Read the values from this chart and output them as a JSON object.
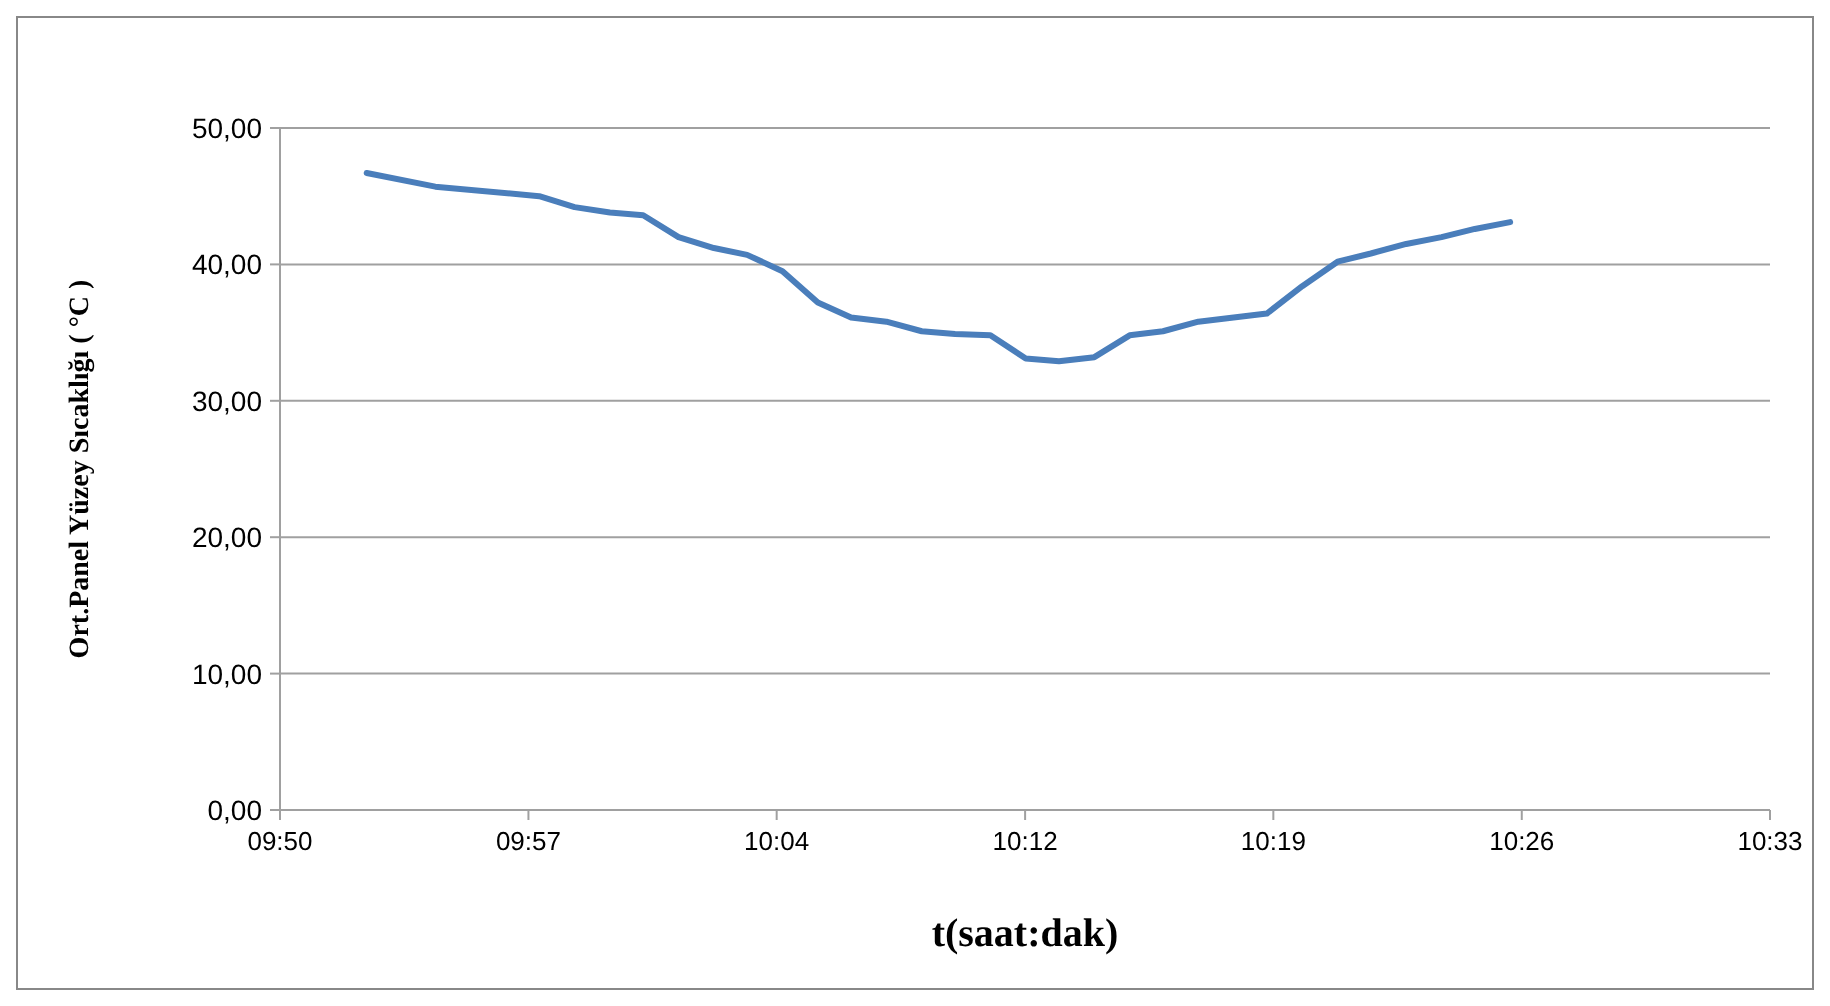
{
  "chart_data": {
    "type": "line",
    "xlabel": "t(saat:dak)",
    "ylabel": "Ort.Panel Yüzey Sıcaklığı ( °C )",
    "x": [
      9.875,
      9.908,
      9.958,
      9.975,
      9.992,
      10.008,
      10.025,
      10.042,
      10.058,
      10.075,
      10.092,
      10.108,
      10.125,
      10.142,
      10.158,
      10.175,
      10.192,
      10.208,
      10.225,
      10.242,
      10.258,
      10.275,
      10.292,
      10.308,
      10.325,
      10.342,
      10.358,
      10.375,
      10.392,
      10.408,
      10.425
    ],
    "series": [
      {
        "color": "#4a7ebb",
        "values": [
          46.7,
          45.7,
          45.0,
          44.2,
          43.8,
          43.6,
          42.0,
          41.2,
          40.7,
          39.5,
          37.2,
          36.1,
          35.8,
          35.1,
          34.9,
          34.8,
          33.1,
          32.9,
          33.2,
          34.8,
          35.1,
          35.8,
          36.1,
          36.4,
          38.4,
          40.2,
          40.8,
          41.5,
          42.0,
          42.6,
          43.1
        ]
      }
    ],
    "xlim": [
      9.8333,
      10.55
    ],
    "xticks": [
      {
        "value": 9.8333,
        "label": "09:50"
      },
      {
        "value": 9.9528,
        "label": "09:57"
      },
      {
        "value": 10.0722,
        "label": "10:04"
      },
      {
        "value": 10.1917,
        "label": "10:12"
      },
      {
        "value": 10.3111,
        "label": "10:19"
      },
      {
        "value": 10.4306,
        "label": "10:26"
      },
      {
        "value": 10.55,
        "label": "10:33"
      }
    ],
    "ylim": [
      0,
      50
    ],
    "yticks": [
      {
        "value": 0,
        "label": "0,00"
      },
      {
        "value": 10,
        "label": "10,00"
      },
      {
        "value": 20,
        "label": "20,00"
      },
      {
        "value": 30,
        "label": "30,00"
      },
      {
        "value": 40,
        "label": "40,00"
      },
      {
        "value": 50,
        "label": "50,00"
      }
    ],
    "grid": "y",
    "marker": "none",
    "line_style": "solid"
  }
}
